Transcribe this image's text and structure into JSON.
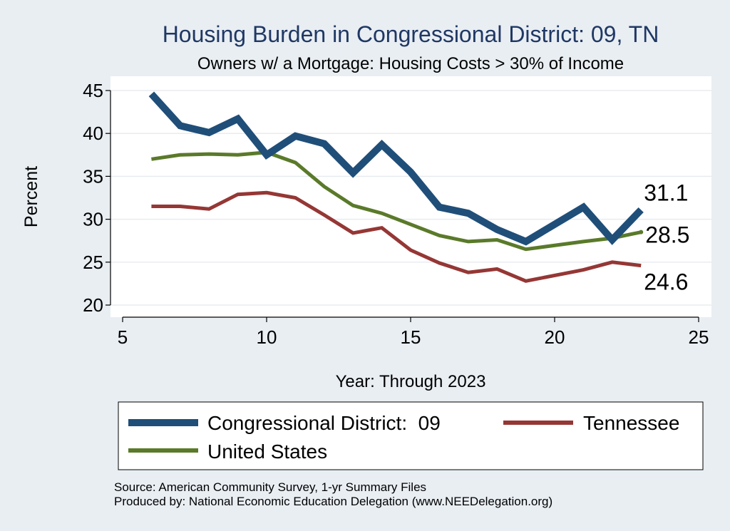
{
  "chart_data": {
    "type": "line",
    "title": "Housing Burden in Congressional District:  09, TN",
    "subtitle": "Owners w/ a Mortgage: Housing Costs > 30% of Income",
    "xlabel": "Year: Through 2023",
    "ylabel": "Percent",
    "xlim": [
      5,
      25
    ],
    "ylim": [
      20,
      45
    ],
    "x_ticks": [
      5,
      10,
      15,
      20,
      25
    ],
    "y_ticks": [
      20,
      25,
      30,
      35,
      40,
      45
    ],
    "grid": true,
    "legend_position": "bottom",
    "series": [
      {
        "name": "Congressional District:  09",
        "color": "#1f4e79",
        "end_label": "31.1",
        "points": [
          [
            6,
            44.6
          ],
          [
            7,
            40.9
          ],
          [
            8,
            40.1
          ],
          [
            9,
            41.7
          ],
          [
            10,
            37.5
          ],
          [
            11,
            39.7
          ],
          [
            12,
            38.8
          ],
          [
            13,
            35.4
          ],
          [
            14,
            38.7
          ],
          [
            15,
            35.5
          ],
          [
            16,
            31.4
          ],
          [
            17,
            30.7
          ],
          [
            18,
            28.8
          ],
          [
            19,
            27.4
          ],
          [
            21,
            31.4
          ],
          [
            22,
            27.6
          ],
          [
            23,
            31.1
          ]
        ]
      },
      {
        "name": "Tennessee",
        "color": "#953735",
        "end_label": "24.6",
        "points": [
          [
            6,
            31.5
          ],
          [
            7,
            31.5
          ],
          [
            8,
            31.2
          ],
          [
            9,
            32.9
          ],
          [
            10,
            33.1
          ],
          [
            11,
            32.5
          ],
          [
            12,
            30.5
          ],
          [
            13,
            28.4
          ],
          [
            14,
            29.0
          ],
          [
            15,
            26.4
          ],
          [
            16,
            24.9
          ],
          [
            17,
            23.8
          ],
          [
            18,
            24.2
          ],
          [
            19,
            22.8
          ],
          [
            21,
            24.1
          ],
          [
            22,
            25.0
          ],
          [
            23,
            24.6
          ]
        ]
      },
      {
        "name": "United States",
        "color": "#5a7a2a",
        "end_label": "28.5",
        "points": [
          [
            6,
            37.0
          ],
          [
            7,
            37.5
          ],
          [
            8,
            37.6
          ],
          [
            9,
            37.5
          ],
          [
            10,
            37.8
          ],
          [
            11,
            36.6
          ],
          [
            12,
            33.8
          ],
          [
            13,
            31.6
          ],
          [
            14,
            30.7
          ],
          [
            15,
            29.4
          ],
          [
            16,
            28.1
          ],
          [
            17,
            27.4
          ],
          [
            18,
            27.6
          ],
          [
            19,
            26.5
          ],
          [
            21,
            27.4
          ],
          [
            22,
            27.8
          ],
          [
            23,
            28.5
          ]
        ]
      }
    ],
    "source": "Source: American Community Survey, 1-yr Summary Files",
    "produced_by": "Produced by: National Economic Education Delegation (www.NEEDelegation.org)"
  }
}
